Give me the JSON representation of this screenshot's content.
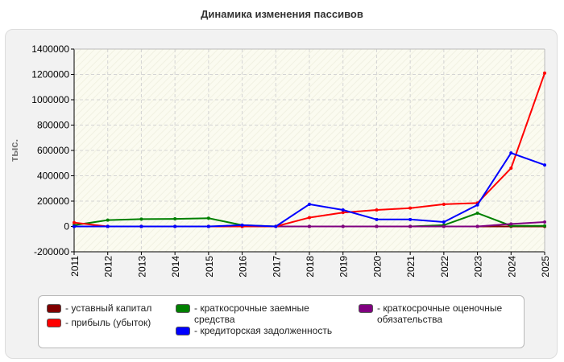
{
  "page": {
    "title": "Динамика изменения пассивов"
  },
  "chart_data": {
    "type": "line",
    "title": "Динамика изменения пассивов",
    "xlabel": "",
    "ylabel": "тыс.",
    "ylim": [
      -200000,
      1400000
    ],
    "yticks": [
      "1400000",
      "1200000",
      "1000000",
      "800000",
      "600000",
      "400000",
      "200000",
      "0",
      "-200000"
    ],
    "yticks_values": [
      1400000,
      1200000,
      1000000,
      800000,
      600000,
      400000,
      200000,
      0,
      -200000
    ],
    "grid": true,
    "legend_position": "bottom",
    "categories": [
      "2011",
      "2012",
      "2013",
      "2014",
      "2015",
      "2016",
      "2017",
      "2018",
      "2019",
      "2020",
      "2021",
      "2022",
      "2023",
      "2024",
      "2025"
    ],
    "series": [
      {
        "name": "уставный капитал",
        "color": "#800000",
        "values": [
          0,
          0,
          0,
          0,
          0,
          0,
          0,
          0,
          0,
          0,
          0,
          0,
          0,
          0,
          0
        ]
      },
      {
        "name": "краткосрочные заемные средства",
        "color": "#008000",
        "values": [
          10000,
          50000,
          58000,
          60000,
          65000,
          10000,
          0,
          0,
          0,
          0,
          0,
          10000,
          105000,
          5000,
          5000
        ]
      },
      {
        "name": "краткосрочные оценочные обязательства",
        "color": "#800080",
        "values": [
          0,
          0,
          0,
          0,
          0,
          0,
          0,
          0,
          0,
          0,
          0,
          0,
          0,
          20000,
          35000
        ]
      },
      {
        "name": "прибыль (убыток)",
        "color": "#ff0000",
        "values": [
          30000,
          0,
          0,
          0,
          0,
          0,
          0,
          70000,
          110000,
          130000,
          145000,
          175000,
          185000,
          460000,
          1210000
        ]
      },
      {
        "name": "кредиторская задолженность",
        "color": "#0000ff",
        "values": [
          0,
          0,
          0,
          0,
          0,
          10000,
          0,
          175000,
          130000,
          55000,
          55000,
          35000,
          170000,
          580000,
          485000
        ]
      }
    ]
  },
  "legend": {
    "items": [
      {
        "label": "- уставный капитал",
        "color": "#800000"
      },
      {
        "label": "- прибыль (убыток)",
        "color": "#ff0000"
      },
      {
        "label": "- краткосрочные заемные средства",
        "color": "#008000"
      },
      {
        "label": "- кредиторская задолженность",
        "color": "#0000ff"
      },
      {
        "label": "- краткосрочные оценочные обязательства",
        "color": "#800080"
      }
    ]
  }
}
